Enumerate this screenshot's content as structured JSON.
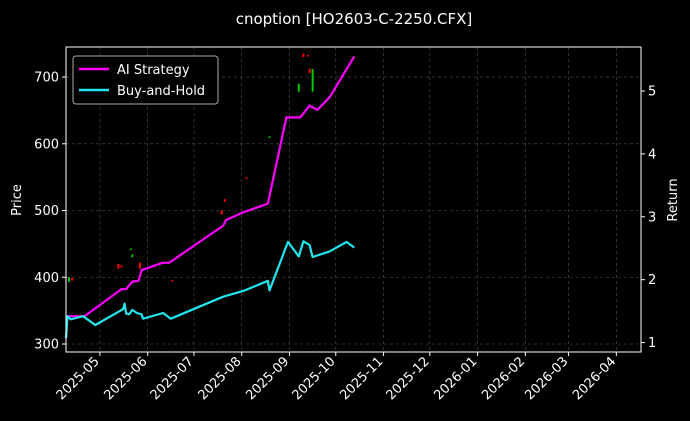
{
  "chart_data": {
    "type": "line",
    "title": "cnoption [HO2603-C-2250.CFX]",
    "ylabel_left": "Price",
    "ylabel_right": "Return",
    "xlim": [
      "2025-04-09",
      "2026-04-17"
    ],
    "ylim_left": [
      288,
      745
    ],
    "ylim_right": [
      0.85,
      5.7
    ],
    "x_ticks": [
      "2025-05",
      "2025-06",
      "2025-07",
      "2025-08",
      "2025-09",
      "2025-10",
      "2025-11",
      "2025-12",
      "2026-01",
      "2026-02",
      "2026-03",
      "2026-04"
    ],
    "y_ticks_left": [
      300,
      400,
      500,
      600,
      700
    ],
    "y_ticks_right": [
      1,
      2,
      3,
      4,
      5
    ],
    "grid": true,
    "legend": "upper left",
    "series": [
      {
        "name": "AI Strategy",
        "color": "#ff00ff",
        "axis": "right",
        "points": [
          [
            "2025-04-09",
            1.38
          ],
          [
            "2025-04-11",
            1.42
          ],
          [
            "2025-04-21",
            1.42
          ],
          [
            "2025-05-15",
            1.85
          ],
          [
            "2025-05-18",
            1.85
          ],
          [
            "2025-05-22",
            1.97
          ],
          [
            "2025-05-26",
            1.98
          ],
          [
            "2025-05-28",
            2.15
          ],
          [
            "2025-06-05",
            2.22
          ],
          [
            "2025-06-11",
            2.27
          ],
          [
            "2025-06-15",
            2.27
          ],
          [
            "2025-07-20",
            2.86
          ],
          [
            "2025-07-22",
            2.95
          ],
          [
            "2025-08-02",
            3.07
          ],
          [
            "2025-08-18",
            3.21
          ],
          [
            "2025-08-30",
            4.58
          ],
          [
            "2025-09-08",
            4.58
          ],
          [
            "2025-09-14",
            4.77
          ],
          [
            "2025-09-16",
            4.74
          ],
          [
            "2025-09-19",
            4.7
          ],
          [
            "2025-09-27",
            4.9
          ],
          [
            "2025-10-13",
            5.55
          ]
        ]
      },
      {
        "name": "Buy-and-Hold",
        "color": "#22e6ee",
        "axis": "right",
        "points": [
          [
            "2025-04-09",
            1.07
          ],
          [
            "2025-04-10",
            1.42
          ],
          [
            "2025-04-12",
            1.37
          ],
          [
            "2025-04-20",
            1.42
          ],
          [
            "2025-04-28",
            1.28
          ],
          [
            "2025-05-16",
            1.53
          ],
          [
            "2025-05-17",
            1.62
          ],
          [
            "2025-05-18",
            1.46
          ],
          [
            "2025-05-20",
            1.45
          ],
          [
            "2025-05-22",
            1.52
          ],
          [
            "2025-05-25",
            1.47
          ],
          [
            "2025-05-28",
            1.45
          ],
          [
            "2025-05-29",
            1.38
          ],
          [
            "2025-06-11",
            1.47
          ],
          [
            "2025-06-16",
            1.38
          ],
          [
            "2025-07-20",
            1.73
          ],
          [
            "2025-08-03",
            1.83
          ],
          [
            "2025-08-18",
            1.98
          ],
          [
            "2025-08-19",
            1.83
          ],
          [
            "2025-08-31",
            2.6
          ],
          [
            "2025-09-07",
            2.37
          ],
          [
            "2025-09-10",
            2.61
          ],
          [
            "2025-09-14",
            2.55
          ],
          [
            "2025-09-16",
            2.36
          ],
          [
            "2025-09-27",
            2.45
          ],
          [
            "2025-10-08",
            2.6
          ],
          [
            "2025-10-13",
            2.51
          ]
        ]
      }
    ],
    "candles": [
      {
        "date": "2025-04-11",
        "open": 393,
        "close": 400,
        "color": "#00cc00"
      },
      {
        "date": "2025-04-13",
        "open": 395,
        "close": 399,
        "color": "#ff0000"
      },
      {
        "date": "2025-05-13",
        "open": 413,
        "close": 420,
        "color": "#ff0000"
      },
      {
        "date": "2025-05-15",
        "open": 415,
        "close": 418,
        "color": "#ff0000"
      },
      {
        "date": "2025-05-21",
        "open": 441,
        "close": 443,
        "color": "#00cc00"
      },
      {
        "date": "2025-05-22",
        "open": 430,
        "close": 434,
        "color": "#00cc00"
      },
      {
        "date": "2025-05-27",
        "open": 413,
        "close": 422,
        "color": "#ff0000"
      },
      {
        "date": "2025-06-17",
        "open": 394,
        "close": 396,
        "color": "#ff0000"
      },
      {
        "date": "2025-07-19",
        "open": 494,
        "close": 500,
        "color": "#ff0000"
      },
      {
        "date": "2025-07-21",
        "open": 513,
        "close": 517,
        "color": "#ff0000"
      },
      {
        "date": "2025-08-04",
        "open": 548,
        "close": 550,
        "color": "#ff0000"
      },
      {
        "date": "2025-08-19",
        "open": 609,
        "close": 611,
        "color": "#00cc00"
      },
      {
        "date": "2025-09-07",
        "open": 678,
        "close": 690,
        "color": "#00cc00"
      },
      {
        "date": "2025-09-10",
        "open": 730,
        "close": 735,
        "color": "#ff0000"
      },
      {
        "date": "2025-09-13",
        "open": 731,
        "close": 733,
        "color": "#ff0000"
      },
      {
        "date": "2025-09-14",
        "open": 706,
        "close": 712,
        "color": "#ff0000"
      },
      {
        "date": "2025-09-16",
        "open": 678,
        "close": 712,
        "color": "#00cc00"
      }
    ]
  }
}
